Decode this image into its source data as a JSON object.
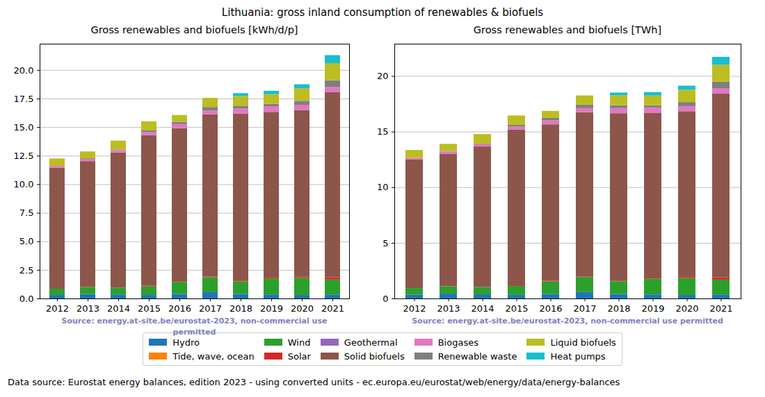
{
  "title": "Lithuania: gross inland consumption of renewables & biofuels",
  "caption": "Data source: Eurostat energy balances, edition 2023 - using converted units - ec.europa.eu/eurostat/web/energy/data/energy-balances",
  "chart_data": [
    {
      "type": "bar",
      "stacked": true,
      "grid": true,
      "legend": "bottom",
      "title": "Gross renewables and biofuels [kWh/d/p]",
      "annotation": "Source: energy.at-site.be/eurostat-2023, non-commercial use permitted",
      "categories": [
        "2012",
        "2013",
        "2014",
        "2015",
        "2016",
        "2017",
        "2018",
        "2019",
        "2020",
        "2021"
      ],
      "ylim": [
        0,
        22.3
      ],
      "yticks": [
        {
          "value": 0,
          "label": "0.0"
        },
        2.5,
        {
          "value": 5,
          "label": "5.0"
        },
        7.5,
        {
          "value": 10,
          "label": "10.0"
        },
        12.5,
        {
          "value": 15,
          "label": "15.0"
        },
        17.5,
        {
          "value": 20,
          "label": "20.0"
        }
      ],
      "series": [
        {
          "name": "Hydro",
          "color": "#1f77b4",
          "values": [
            0.3,
            0.4,
            0.35,
            0.3,
            0.4,
            0.55,
            0.4,
            0.35,
            0.3,
            0.35
          ]
        },
        {
          "name": "Tide, wave, ocean",
          "color": "#ff7f0e",
          "values": [
            0,
            0,
            0,
            0,
            0,
            0,
            0,
            0,
            0,
            0
          ]
        },
        {
          "name": "Wind",
          "color": "#2ca02c",
          "values": [
            0.55,
            0.6,
            0.6,
            0.75,
            1.05,
            1.3,
            1.1,
            1.4,
            1.5,
            1.3
          ]
        },
        {
          "name": "Solar",
          "color": "#d62728",
          "values": [
            0,
            0.02,
            0.02,
            0.06,
            0.06,
            0.06,
            0.07,
            0.08,
            0.1,
            0.2
          ]
        },
        {
          "name": "Geothermal",
          "color": "#9467bd",
          "values": [
            0,
            0,
            0,
            0,
            0,
            0,
            0,
            0,
            0,
            0
          ]
        },
        {
          "name": "Solid biofuels",
          "color": "#8c564b",
          "values": [
            10.6,
            11.0,
            11.8,
            13.2,
            13.4,
            14.2,
            14.6,
            14.5,
            14.6,
            16.2
          ]
        },
        {
          "name": "Biogases",
          "color": "#e377c2",
          "values": [
            0.15,
            0.2,
            0.2,
            0.25,
            0.35,
            0.35,
            0.45,
            0.5,
            0.45,
            0.45
          ]
        },
        {
          "name": "Renewable waste",
          "color": "#7f7f7f",
          "values": [
            0,
            0.05,
            0.05,
            0.15,
            0.2,
            0.3,
            0.25,
            0.2,
            0.35,
            0.6
          ]
        },
        {
          "name": "Liquid biofuels",
          "color": "#bcbd22",
          "values": [
            0.65,
            0.6,
            0.8,
            0.8,
            0.6,
            0.8,
            0.85,
            0.85,
            1.1,
            1.5
          ]
        },
        {
          "name": "Heat pumps",
          "color": "#17becf",
          "values": [
            0,
            0,
            0,
            0,
            0,
            0,
            0.25,
            0.3,
            0.35,
            0.7
          ]
        }
      ]
    },
    {
      "type": "bar",
      "stacked": true,
      "grid": true,
      "legend": "bottom",
      "title": "Gross renewables and biofuels [TWh]",
      "annotation": "Source: energy.at-site.be/eurostat-2023, non-commercial use permitted",
      "categories": [
        "2012",
        "2013",
        "2014",
        "2015",
        "2016",
        "2017",
        "2018",
        "2019",
        "2020",
        "2021"
      ],
      "ylim": [
        0,
        22.9
      ],
      "yticks": [
        0,
        5,
        10,
        15,
        20
      ],
      "series": [
        {
          "name": "Hydro",
          "color": "#1f77b4",
          "values": [
            0.33,
            0.43,
            0.37,
            0.32,
            0.42,
            0.57,
            0.41,
            0.36,
            0.31,
            0.36
          ]
        },
        {
          "name": "Tide, wave, ocean",
          "color": "#ff7f0e",
          "values": [
            0,
            0,
            0,
            0,
            0,
            0,
            0,
            0,
            0,
            0
          ]
        },
        {
          "name": "Wind",
          "color": "#2ca02c",
          "values": [
            0.6,
            0.65,
            0.64,
            0.8,
            1.1,
            1.35,
            1.13,
            1.43,
            1.53,
            1.33
          ]
        },
        {
          "name": "Solar",
          "color": "#d62728",
          "values": [
            0,
            0.02,
            0.02,
            0.06,
            0.06,
            0.06,
            0.07,
            0.08,
            0.1,
            0.2
          ]
        },
        {
          "name": "Geothermal",
          "color": "#9467bd",
          "values": [
            0,
            0,
            0,
            0,
            0,
            0,
            0,
            0,
            0,
            0
          ]
        },
        {
          "name": "Solid biofuels",
          "color": "#8c564b",
          "values": [
            11.55,
            11.88,
            12.63,
            13.99,
            14.07,
            14.77,
            15.04,
            14.79,
            14.89,
            16.52
          ]
        },
        {
          "name": "Biogases",
          "color": "#e377c2",
          "values": [
            0.16,
            0.22,
            0.21,
            0.27,
            0.37,
            0.36,
            0.46,
            0.51,
            0.46,
            0.46
          ]
        },
        {
          "name": "Renewable waste",
          "color": "#7f7f7f",
          "values": [
            0,
            0.05,
            0.05,
            0.16,
            0.21,
            0.31,
            0.26,
            0.2,
            0.36,
            0.61
          ]
        },
        {
          "name": "Liquid biofuels",
          "color": "#bcbd22",
          "values": [
            0.71,
            0.65,
            0.86,
            0.85,
            0.63,
            0.83,
            0.88,
            0.87,
            1.12,
            1.53
          ]
        },
        {
          "name": "Heat pumps",
          "color": "#17becf",
          "values": [
            0,
            0,
            0,
            0,
            0,
            0,
            0.26,
            0.31,
            0.36,
            0.71
          ]
        }
      ]
    }
  ]
}
